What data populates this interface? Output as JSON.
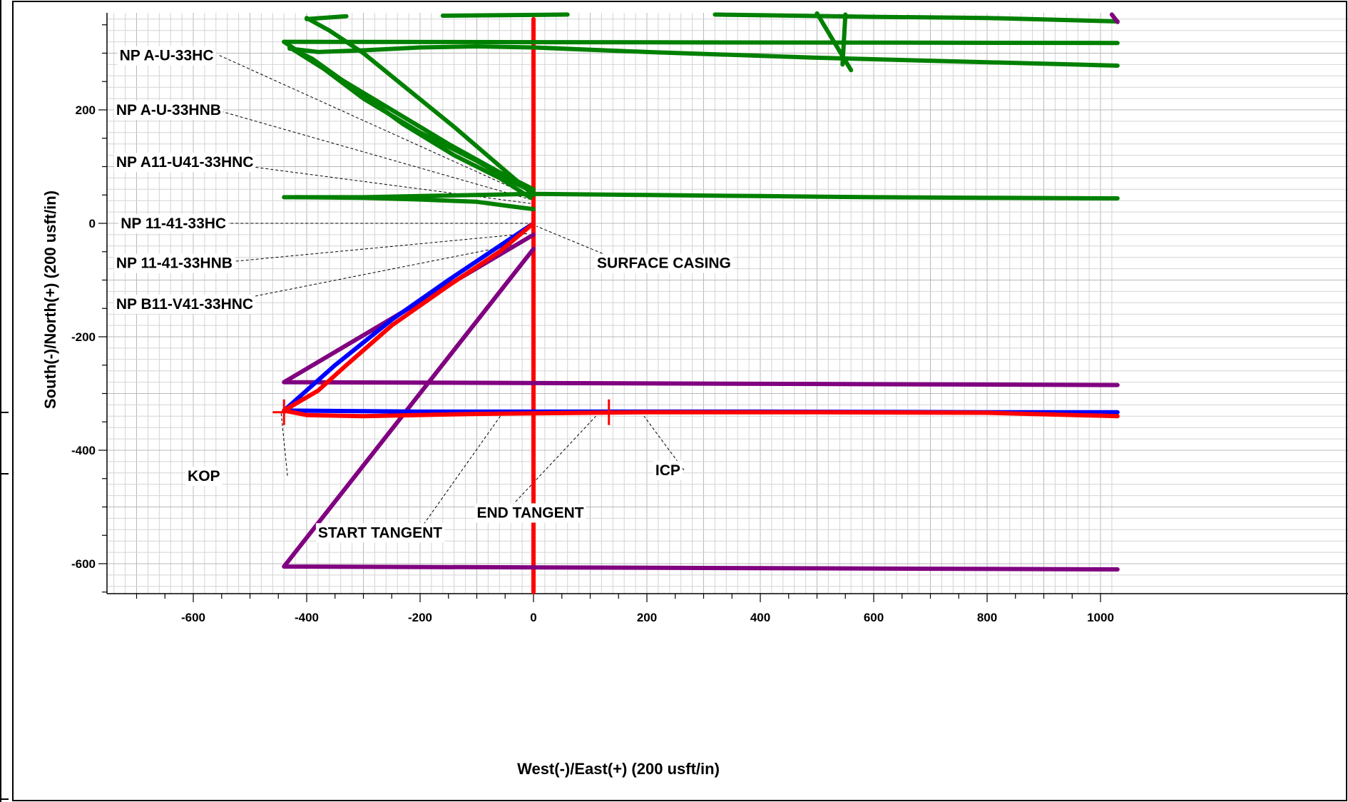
{
  "chart_data": {
    "type": "line",
    "title": "",
    "xlabel": "West(-)/East(+) (200 usft/in)",
    "ylabel": "South(-)/North(+) (200 usft/in)",
    "xlim": [
      -750,
      1030
    ],
    "ylim": [
      -650,
      370
    ],
    "grid": true,
    "x_ticks": [
      -600,
      -400,
      -200,
      0,
      200,
      400,
      600,
      800,
      1000
    ],
    "y_ticks": [
      -600,
      -400,
      -200,
      0,
      200
    ],
    "x_tick_labels": [
      "-600",
      "-400",
      "-200",
      "0",
      "200",
      "400",
      "600",
      "800",
      "1000"
    ],
    "y_tick_labels": [
      "-600",
      "-400",
      "-200",
      "0",
      "200"
    ],
    "series": [
      {
        "color": "#ff0000",
        "points": [
          [
            0,
            360
          ],
          [
            0,
            -650
          ]
        ]
      },
      {
        "color": "#008000",
        "points": [
          [
            -440,
            320
          ],
          [
            1030,
            318
          ]
        ]
      },
      {
        "color": "#008000",
        "points": [
          [
            -430,
            308
          ],
          [
            -380,
            302
          ],
          [
            -300,
            305
          ],
          [
            -200,
            310
          ],
          [
            -100,
            312
          ],
          [
            0,
            310
          ],
          [
            200,
            302
          ],
          [
            500,
            292
          ],
          [
            800,
            284
          ],
          [
            1030,
            278
          ]
        ]
      },
      {
        "color": "#008000",
        "points": [
          [
            -400,
            360
          ],
          [
            -330,
            365
          ]
        ]
      },
      {
        "color": "#008000",
        "points": [
          [
            -160,
            366
          ],
          [
            60,
            368
          ]
        ]
      },
      {
        "color": "#008000",
        "points": [
          [
            320,
            368
          ],
          [
            600,
            364
          ],
          [
            800,
            362
          ],
          [
            1030,
            356
          ]
        ]
      },
      {
        "color": "#008000",
        "points": [
          [
            -400,
            362
          ],
          [
            -360,
            340
          ],
          [
            -300,
            300
          ],
          [
            -220,
            235
          ],
          [
            -140,
            170
          ],
          [
            -70,
            110
          ],
          [
            0,
            50
          ]
        ]
      },
      {
        "color": "#008000",
        "points": [
          [
            -440,
            320
          ],
          [
            -380,
            280
          ],
          [
            -300,
            220
          ],
          [
            -200,
            160
          ],
          [
            -100,
            110
          ],
          [
            -30,
            70
          ],
          [
            0,
            55
          ]
        ]
      },
      {
        "color": "#008000",
        "points": [
          [
            -430,
            310
          ],
          [
            -350,
            260
          ],
          [
            -250,
            200
          ],
          [
            -150,
            140
          ],
          [
            -60,
            90
          ],
          [
            0,
            60
          ]
        ]
      },
      {
        "color": "#008000",
        "points": [
          [
            -430,
            310
          ],
          [
            -390,
            290
          ],
          [
            -320,
            240
          ],
          [
            -230,
            175
          ],
          [
            -140,
            120
          ],
          [
            -60,
            80
          ],
          [
            -5,
            45
          ]
        ]
      },
      {
        "color": "#008000",
        "points": [
          [
            -420,
            46
          ],
          [
            -300,
            45
          ],
          [
            -200,
            42
          ],
          [
            -100,
            38
          ],
          [
            -40,
            30
          ],
          [
            0,
            25
          ]
        ]
      },
      {
        "color": "#008000",
        "points": [
          [
            -440,
            46
          ],
          [
            -300,
            46
          ],
          [
            -200,
            48
          ],
          [
            -100,
            50
          ],
          [
            0,
            52
          ],
          [
            200,
            50
          ],
          [
            400,
            48
          ],
          [
            600,
            46
          ],
          [
            800,
            45
          ],
          [
            1030,
            44
          ]
        ]
      },
      {
        "color": "#008000",
        "points": [
          [
            500,
            370
          ],
          [
            530,
            320
          ],
          [
            560,
            270
          ]
        ]
      },
      {
        "color": "#008000",
        "points": [
          [
            550,
            368
          ],
          [
            545,
            280
          ]
        ]
      },
      {
        "color": "#800080",
        "points": [
          [
            0,
            -20
          ],
          [
            -440,
            -280
          ],
          [
            1030,
            -285
          ]
        ]
      },
      {
        "color": "#800080",
        "points": [
          [
            0,
            -45
          ],
          [
            -440,
            -605
          ],
          [
            1030,
            -610
          ]
        ]
      },
      {
        "color": "#800080",
        "points": [
          [
            1020,
            368
          ],
          [
            1030,
            355
          ]
        ]
      },
      {
        "color": "#0000ff",
        "points": [
          [
            0,
            0
          ],
          [
            -60,
            -40
          ],
          [
            -150,
            -100
          ],
          [
            -250,
            -170
          ],
          [
            -350,
            -250
          ],
          [
            -440,
            -330
          ],
          [
            -200,
            -332
          ],
          [
            0,
            -332
          ],
          [
            400,
            -332
          ],
          [
            800,
            -333
          ],
          [
            1030,
            -333
          ]
        ]
      },
      {
        "color": "#ff0000",
        "points": [
          [
            0,
            0
          ],
          [
            -60,
            -50
          ],
          [
            -150,
            -110
          ],
          [
            -250,
            -180
          ],
          [
            -330,
            -250
          ],
          [
            -380,
            -295
          ],
          [
            -440,
            -330
          ],
          [
            -400,
            -338
          ],
          [
            -300,
            -340
          ],
          [
            -100,
            -336
          ],
          [
            0,
            -335
          ],
          [
            200,
            -333
          ],
          [
            500,
            -333
          ],
          [
            800,
            -334
          ],
          [
            1030,
            -340
          ]
        ]
      }
    ],
    "markers": [
      {
        "x": -440,
        "y": -333,
        "color": "#ff0000"
      },
      {
        "x": 133,
        "y": -333,
        "color": "#ff0000"
      }
    ],
    "annotations": [
      {
        "label": "NP  A-U-33HC",
        "lx": -730,
        "ly": 296,
        "tx": -5,
        "ty": 48
      },
      {
        "label": "NP  A-U-33HNB",
        "lx": -736,
        "ly": 200,
        "tx": -5,
        "ty": 42
      },
      {
        "label": "NP  A11-U41-33HNC",
        "lx": -736,
        "ly": 108,
        "tx": -5,
        "ty": 35
      },
      {
        "label": "NP  11-41-33HC",
        "lx": -728,
        "ly": 0,
        "tx": 0,
        "ty": 0
      },
      {
        "label": "NP  11-41-33HNB",
        "lx": -736,
        "ly": -70,
        "tx": -10,
        "ty": -18
      },
      {
        "label": "NP  B11-V41-33HNC",
        "lx": -736,
        "ly": -142,
        "tx": -20,
        "ty": -35
      },
      {
        "label": "SURFACE  CASING",
        "lx": 112,
        "ly": -70,
        "tx": 5,
        "ty": -5
      },
      {
        "label": "KOP",
        "lx": -610,
        "ly": -445,
        "tx": -445,
        "ty": -335
      },
      {
        "label": "ICP",
        "lx": 215,
        "ly": -435,
        "tx": 195,
        "ty": -340
      },
      {
        "label": "END  TANGENT",
        "lx": -100,
        "ly": -510,
        "tx": 110,
        "ty": -340
      },
      {
        "label": "START  TANGENT",
        "lx": -380,
        "ly": -545,
        "tx": -55,
        "ty": -335
      }
    ]
  }
}
